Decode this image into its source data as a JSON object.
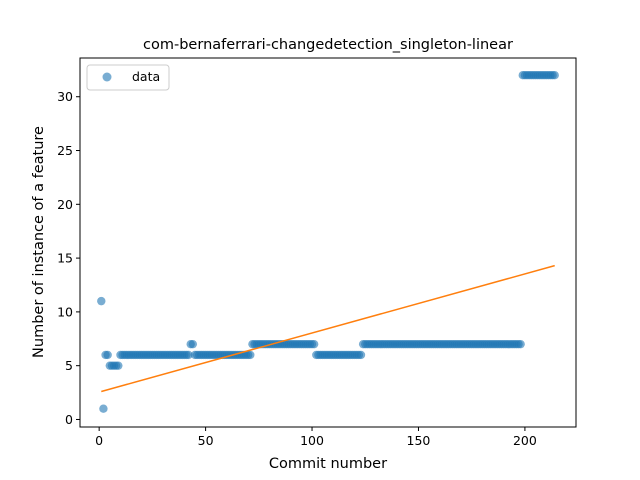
{
  "chart_data": {
    "type": "scatter",
    "title": "com-bernaferrari-changedetection_singleton-linear",
    "xlabel": "Commit number",
    "ylabel": "Number of instance of a feature",
    "xlim": [
      -9,
      224
    ],
    "ylim": [
      -0.7,
      33.6
    ],
    "xticks": [
      0,
      50,
      100,
      150,
      200
    ],
    "yticks": [
      0,
      5,
      10,
      15,
      20,
      25,
      30
    ],
    "legend": {
      "placement": "upper-left",
      "entries": [
        "data"
      ]
    },
    "colors": {
      "points": "#1f77b4",
      "fit_line": "#ff7f0e"
    },
    "series": [
      {
        "name": "data",
        "kind": "scatter",
        "segments": [
          {
            "x_start": 1,
            "x_end": 1,
            "y": 11
          },
          {
            "x_start": 2,
            "x_end": 2,
            "y": 1
          },
          {
            "x_start": 3,
            "x_end": 4,
            "y": 6
          },
          {
            "x_start": 5,
            "x_end": 9,
            "y": 5
          },
          {
            "x_start": 10,
            "x_end": 42,
            "y": 6
          },
          {
            "x_start": 43,
            "x_end": 44,
            "y": 7
          },
          {
            "x_start": 45,
            "x_end": 71,
            "y": 6
          },
          {
            "x_start": 72,
            "x_end": 101,
            "y": 7
          },
          {
            "x_start": 102,
            "x_end": 123,
            "y": 6
          },
          {
            "x_start": 124,
            "x_end": 198,
            "y": 7
          },
          {
            "x_start": 199,
            "x_end": 214,
            "y": 32
          }
        ]
      },
      {
        "name": "",
        "kind": "line",
        "x": [
          1,
          214
        ],
        "y": [
          2.6,
          14.3
        ]
      }
    ]
  }
}
